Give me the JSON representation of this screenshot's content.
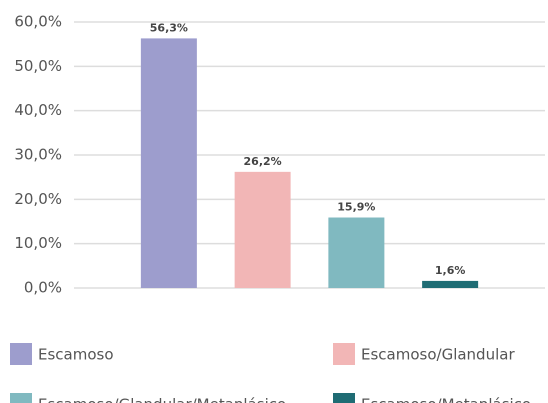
{
  "chart_data": {
    "type": "bar",
    "categories": [
      "Escamoso",
      "Escamoso/Glandular",
      "Escamoso/Glandular/Metaplásico",
      "Escamoso/Metaplásico"
    ],
    "values": [
      56.3,
      26.2,
      15.9,
      1.6
    ],
    "value_labels": [
      "56,3%",
      "26,2%",
      "15,9%",
      "1,6%"
    ],
    "colors": [
      "#9d9dcd",
      "#f2b6b6",
      "#80b9c0",
      "#1f6c74"
    ],
    "ylim": [
      0,
      60
    ],
    "yticks": [
      {
        "value": 0,
        "label": "0,0%"
      },
      {
        "value": 10,
        "label": "10,0%"
      },
      {
        "value": 20,
        "label": "20,0%"
      },
      {
        "value": 30,
        "label": "30,0%"
      },
      {
        "value": 40,
        "label": "40,0%"
      },
      {
        "value": 50,
        "label": "50,0%"
      },
      {
        "value": 60,
        "label": "60,0%"
      }
    ],
    "grid": true
  }
}
